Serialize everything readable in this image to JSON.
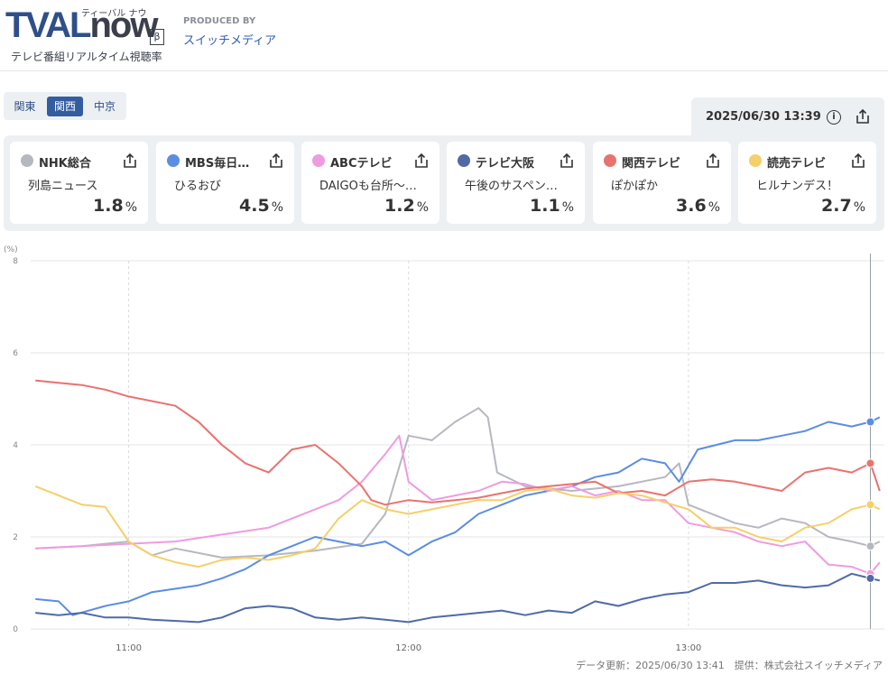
{
  "header": {
    "logo_text": "TVAL",
    "logo_text2": "now",
    "logo_beta": "β",
    "logo_kana": "ティーバル ナウ",
    "logo_subtitle": "テレビ番組リアルタイム視聴率",
    "produced_by": "PRODUCED BY",
    "producer": "スイッチメディア"
  },
  "regions": [
    {
      "label": "関東",
      "active": false
    },
    {
      "label": "関西",
      "active": true
    },
    {
      "label": "中京",
      "active": false
    }
  ],
  "timestamp": "2025/06/30 13:39",
  "icons": {
    "info": "info-icon",
    "share": "share-icon"
  },
  "channels": [
    {
      "name": "NHK総合",
      "program": "列島ニュース",
      "rating": "1.8",
      "unit": "%",
      "color": "#b5b8bf"
    },
    {
      "name": "MBS毎日…",
      "program": "ひるおび",
      "rating": "4.5",
      "unit": "%",
      "color": "#5b8de3"
    },
    {
      "name": "ABCテレビ",
      "program": "DAIGOも台所〜…",
      "rating": "1.2",
      "unit": "%",
      "color": "#ee9ce0"
    },
    {
      "name": "テレビ大阪",
      "program": "午後のサスペン…",
      "rating": "1.1",
      "unit": "%",
      "color": "#4f6aa6"
    },
    {
      "name": "関西テレビ",
      "program": "ぽかぽか",
      "rating": "3.6",
      "unit": "%",
      "color": "#e8736e"
    },
    {
      "name": "読売テレビ",
      "program": "ヒルナンデス！",
      "rating": "2.7",
      "unit": "%",
      "color": "#f5cf6a"
    }
  ],
  "footer": "データ更新：2025/06/30 13:41　提供：株式会社スイッチメディア",
  "chart_data": {
    "type": "line",
    "ylabel": "(%)",
    "ylim": [
      0,
      8
    ],
    "yticks": [
      0,
      2,
      4,
      6,
      8
    ],
    "x_range_minutes": [
      "10:39",
      "13:42"
    ],
    "xticks": [
      "11:00",
      "12:00",
      "13:00"
    ],
    "cursor_time": "13:39",
    "grid": true,
    "series": [
      {
        "name": "NHK総合",
        "color": "#b5b8bf",
        "points": [
          [
            "10:40",
            1.75
          ],
          [
            "10:50",
            1.8
          ],
          [
            "11:00",
            1.9
          ],
          [
            "11:05",
            1.6
          ],
          [
            "11:10",
            1.75
          ],
          [
            "11:20",
            1.55
          ],
          [
            "11:30",
            1.6
          ],
          [
            "11:40",
            1.7
          ],
          [
            "11:50",
            1.85
          ],
          [
            "11:55",
            2.5
          ],
          [
            "12:00",
            4.2
          ],
          [
            "12:05",
            4.1
          ],
          [
            "12:10",
            4.5
          ],
          [
            "12:15",
            4.8
          ],
          [
            "12:17",
            4.6
          ],
          [
            "12:19",
            3.4
          ],
          [
            "12:25",
            3.1
          ],
          [
            "12:35",
            3.0
          ],
          [
            "12:45",
            3.1
          ],
          [
            "12:55",
            3.3
          ],
          [
            "12:58",
            3.6
          ],
          [
            "13:00",
            2.7
          ],
          [
            "13:10",
            2.3
          ],
          [
            "13:15",
            2.2
          ],
          [
            "13:20",
            2.4
          ],
          [
            "13:25",
            2.3
          ],
          [
            "13:30",
            2.0
          ],
          [
            "13:35",
            1.9
          ],
          [
            "13:39",
            1.8
          ],
          [
            "13:41",
            1.9
          ]
        ]
      },
      {
        "name": "MBS毎日…",
        "color": "#5b8de3",
        "points": [
          [
            "10:40",
            0.65
          ],
          [
            "10:45",
            0.6
          ],
          [
            "10:48",
            0.3
          ],
          [
            "10:55",
            0.5
          ],
          [
            "11:00",
            0.6
          ],
          [
            "11:05",
            0.8
          ],
          [
            "11:15",
            0.95
          ],
          [
            "11:20",
            1.1
          ],
          [
            "11:25",
            1.3
          ],
          [
            "11:30",
            1.6
          ],
          [
            "11:35",
            1.8
          ],
          [
            "11:40",
            2.0
          ],
          [
            "11:45",
            1.9
          ],
          [
            "11:50",
            1.8
          ],
          [
            "11:55",
            1.9
          ],
          [
            "12:00",
            1.6
          ],
          [
            "12:05",
            1.9
          ],
          [
            "12:10",
            2.1
          ],
          [
            "12:15",
            2.5
          ],
          [
            "12:20",
            2.7
          ],
          [
            "12:25",
            2.9
          ],
          [
            "12:30",
            3.0
          ],
          [
            "12:35",
            3.1
          ],
          [
            "12:40",
            3.3
          ],
          [
            "12:45",
            3.4
          ],
          [
            "12:50",
            3.7
          ],
          [
            "12:55",
            3.6
          ],
          [
            "12:58",
            3.2
          ],
          [
            "13:02",
            3.9
          ],
          [
            "13:10",
            4.1
          ],
          [
            "13:15",
            4.1
          ],
          [
            "13:20",
            4.2
          ],
          [
            "13:25",
            4.3
          ],
          [
            "13:30",
            4.5
          ],
          [
            "13:35",
            4.4
          ],
          [
            "13:39",
            4.5
          ],
          [
            "13:41",
            4.6
          ]
        ]
      },
      {
        "name": "ABCテレビ",
        "color": "#ee9ce0",
        "points": [
          [
            "10:40",
            1.75
          ],
          [
            "10:50",
            1.8
          ],
          [
            "11:00",
            1.85
          ],
          [
            "11:10",
            1.9
          ],
          [
            "11:20",
            2.05
          ],
          [
            "11:30",
            2.2
          ],
          [
            "11:40",
            2.6
          ],
          [
            "11:45",
            2.8
          ],
          [
            "11:50",
            3.2
          ],
          [
            "11:55",
            3.8
          ],
          [
            "11:58",
            4.2
          ],
          [
            "12:00",
            3.2
          ],
          [
            "12:05",
            2.8
          ],
          [
            "12:10",
            2.9
          ],
          [
            "12:15",
            3.0
          ],
          [
            "12:20",
            3.2
          ],
          [
            "12:25",
            3.15
          ],
          [
            "12:30",
            3.0
          ],
          [
            "12:35",
            3.1
          ],
          [
            "12:40",
            2.9
          ],
          [
            "12:45",
            3.0
          ],
          [
            "12:50",
            2.8
          ],
          [
            "12:55",
            2.8
          ],
          [
            "13:00",
            2.3
          ],
          [
            "13:05",
            2.2
          ],
          [
            "13:10",
            2.1
          ],
          [
            "13:15",
            1.9
          ],
          [
            "13:20",
            1.8
          ],
          [
            "13:25",
            1.9
          ],
          [
            "13:30",
            1.4
          ],
          [
            "13:35",
            1.35
          ],
          [
            "13:39",
            1.2
          ],
          [
            "13:41",
            1.45
          ]
        ]
      },
      {
        "name": "テレビ大阪",
        "color": "#4f6aa6",
        "points": [
          [
            "10:40",
            0.35
          ],
          [
            "10:45",
            0.3
          ],
          [
            "10:50",
            0.35
          ],
          [
            "10:55",
            0.25
          ],
          [
            "11:00",
            0.25
          ],
          [
            "11:05",
            0.2
          ],
          [
            "11:15",
            0.15
          ],
          [
            "11:20",
            0.25
          ],
          [
            "11:25",
            0.45
          ],
          [
            "11:30",
            0.5
          ],
          [
            "11:35",
            0.45
          ],
          [
            "11:40",
            0.25
          ],
          [
            "11:45",
            0.2
          ],
          [
            "11:50",
            0.25
          ],
          [
            "11:55",
            0.2
          ],
          [
            "12:00",
            0.15
          ],
          [
            "12:05",
            0.25
          ],
          [
            "12:10",
            0.3
          ],
          [
            "12:15",
            0.35
          ],
          [
            "12:20",
            0.4
          ],
          [
            "12:25",
            0.3
          ],
          [
            "12:30",
            0.4
          ],
          [
            "12:35",
            0.35
          ],
          [
            "12:40",
            0.6
          ],
          [
            "12:45",
            0.5
          ],
          [
            "12:50",
            0.65
          ],
          [
            "12:55",
            0.75
          ],
          [
            "13:00",
            0.8
          ],
          [
            "13:05",
            1.0
          ],
          [
            "13:10",
            1.0
          ],
          [
            "13:15",
            1.05
          ],
          [
            "13:20",
            0.95
          ],
          [
            "13:25",
            0.9
          ],
          [
            "13:30",
            0.95
          ],
          [
            "13:35",
            1.2
          ],
          [
            "13:39",
            1.1
          ],
          [
            "13:41",
            1.05
          ]
        ]
      },
      {
        "name": "関西テレビ",
        "color": "#e8736e",
        "points": [
          [
            "10:40",
            5.4
          ],
          [
            "10:45",
            5.35
          ],
          [
            "10:50",
            5.3
          ],
          [
            "10:55",
            5.2
          ],
          [
            "11:00",
            5.05
          ],
          [
            "11:05",
            4.95
          ],
          [
            "11:10",
            4.85
          ],
          [
            "11:15",
            4.5
          ],
          [
            "11:20",
            4.0
          ],
          [
            "11:25",
            3.6
          ],
          [
            "11:30",
            3.4
          ],
          [
            "11:35",
            3.9
          ],
          [
            "11:40",
            4.0
          ],
          [
            "11:45",
            3.6
          ],
          [
            "11:50",
            3.1
          ],
          [
            "11:52",
            2.8
          ],
          [
            "11:55",
            2.7
          ],
          [
            "12:00",
            2.8
          ],
          [
            "12:05",
            2.75
          ],
          [
            "12:10",
            2.8
          ],
          [
            "12:15",
            2.85
          ],
          [
            "12:20",
            2.95
          ],
          [
            "12:25",
            3.05
          ],
          [
            "12:30",
            3.1
          ],
          [
            "12:35",
            3.15
          ],
          [
            "12:40",
            3.2
          ],
          [
            "12:45",
            2.95
          ],
          [
            "12:50",
            3.0
          ],
          [
            "12:55",
            2.9
          ],
          [
            "13:00",
            3.2
          ],
          [
            "13:05",
            3.25
          ],
          [
            "13:10",
            3.2
          ],
          [
            "13:15",
            3.1
          ],
          [
            "13:20",
            3.0
          ],
          [
            "13:25",
            3.4
          ],
          [
            "13:30",
            3.5
          ],
          [
            "13:35",
            3.4
          ],
          [
            "13:39",
            3.6
          ],
          [
            "13:41",
            3.0
          ]
        ]
      },
      {
        "name": "読売テレビ",
        "color": "#f5cf6a",
        "points": [
          [
            "10:40",
            3.1
          ],
          [
            "10:45",
            2.9
          ],
          [
            "10:50",
            2.7
          ],
          [
            "10:55",
            2.65
          ],
          [
            "11:00",
            1.9
          ],
          [
            "11:05",
            1.6
          ],
          [
            "11:10",
            1.45
          ],
          [
            "11:15",
            1.35
          ],
          [
            "11:20",
            1.5
          ],
          [
            "11:25",
            1.55
          ],
          [
            "11:30",
            1.5
          ],
          [
            "11:35",
            1.6
          ],
          [
            "11:40",
            1.75
          ],
          [
            "11:45",
            2.4
          ],
          [
            "11:50",
            2.8
          ],
          [
            "11:55",
            2.6
          ],
          [
            "12:00",
            2.5
          ],
          [
            "12:05",
            2.6
          ],
          [
            "12:10",
            2.7
          ],
          [
            "12:15",
            2.8
          ],
          [
            "12:20",
            2.8
          ],
          [
            "12:25",
            3.0
          ],
          [
            "12:30",
            3.05
          ],
          [
            "12:35",
            2.9
          ],
          [
            "12:40",
            2.85
          ],
          [
            "12:45",
            2.95
          ],
          [
            "12:50",
            2.9
          ],
          [
            "12:55",
            2.75
          ],
          [
            "13:00",
            2.6
          ],
          [
            "13:05",
            2.2
          ],
          [
            "13:10",
            2.2
          ],
          [
            "13:15",
            2.0
          ],
          [
            "13:20",
            1.9
          ],
          [
            "13:25",
            2.2
          ],
          [
            "13:30",
            2.3
          ],
          [
            "13:35",
            2.6
          ],
          [
            "13:39",
            2.7
          ],
          [
            "13:41",
            2.6
          ]
        ]
      }
    ]
  }
}
